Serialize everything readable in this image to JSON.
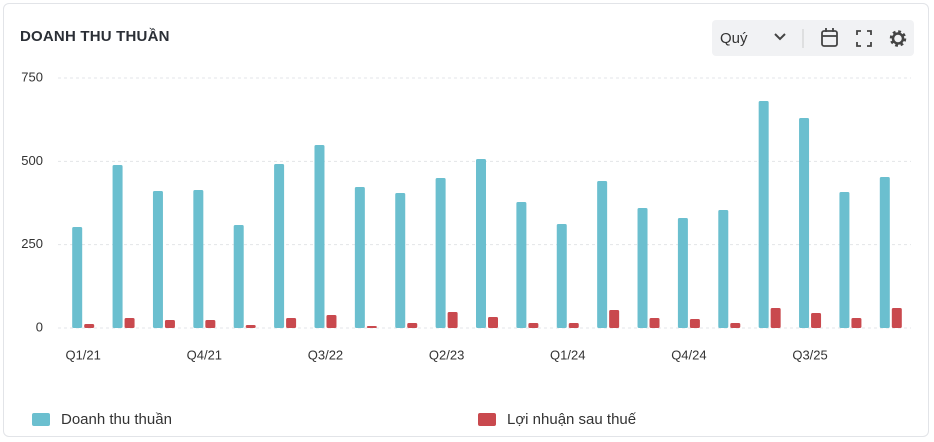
{
  "ui": {
    "period_select": "Quý"
  },
  "chart_data": {
    "type": "bar",
    "title": "DOANH THU THUẦN",
    "categories": [
      "Q1/21",
      null,
      null,
      "Q4/21",
      null,
      null,
      "Q3/22",
      null,
      null,
      "Q2/23",
      null,
      null,
      "Q1/24",
      null,
      null,
      "Q4/24",
      null,
      null,
      "Q3/25",
      null,
      null
    ],
    "series": [
      {
        "name": "Doanh thu thuần",
        "color": "#6bbfcf",
        "values": [
          303,
          489,
          411,
          414,
          309,
          492,
          549,
          423,
          405,
          450,
          507,
          378,
          312,
          441,
          360,
          330,
          354,
          681,
          630,
          408,
          453
        ]
      },
      {
        "name": "Lợi nhuận sau thuế",
        "color": "#c9494e",
        "values": [
          12,
          30,
          24,
          24,
          9,
          30,
          39,
          6,
          15,
          48,
          33,
          15,
          15,
          54,
          30,
          27,
          15,
          60,
          45,
          30,
          60
        ]
      }
    ],
    "ylim": [
      0,
      750
    ],
    "yticks": [
      0,
      250,
      500,
      750
    ],
    "grid": true,
    "legend": "bottom"
  }
}
